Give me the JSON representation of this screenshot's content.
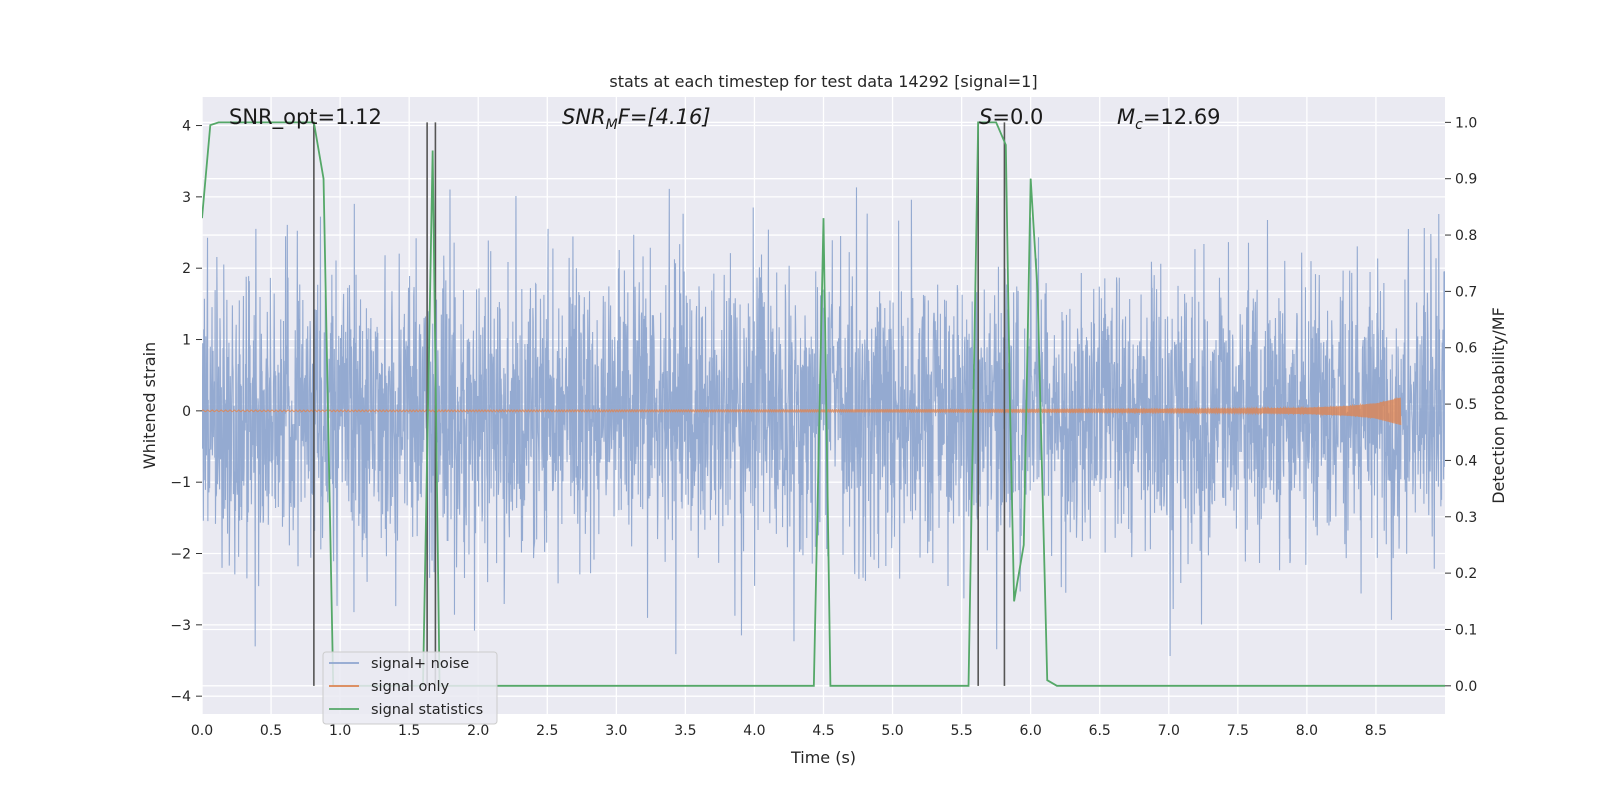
{
  "chart_data": {
    "type": "line",
    "title": "stats at each timestep for test data 14292 [signal=1]",
    "xlabel": "Time (s)",
    "ylabel": "Whitened strain",
    "ylabel_right": "Detection probability/MF",
    "xlim": [
      0.0,
      9.0
    ],
    "ylim": [
      -4.25,
      4.4
    ],
    "ylim_right": [
      -0.05,
      1.045
    ],
    "x_ticks": [
      0.0,
      0.5,
      1.0,
      1.5,
      2.0,
      2.5,
      3.0,
      3.5,
      4.0,
      4.5,
      5.0,
      5.5,
      6.0,
      6.5,
      7.0,
      7.5,
      8.0,
      8.5
    ],
    "x_tick_labels": [
      "0.0",
      "0.5",
      "1.0",
      "1.5",
      "2.0",
      "2.5",
      "3.0",
      "3.5",
      "4.0",
      "4.5",
      "5.0",
      "5.5",
      "6.0",
      "6.5",
      "7.0",
      "7.5",
      "8.0",
      "8.5"
    ],
    "y_ticks": [
      -4,
      -3,
      -2,
      -1,
      0,
      1,
      2,
      3,
      4
    ],
    "y_tick_labels": [
      "−4",
      "−3",
      "−2",
      "−1",
      "0",
      "1",
      "2",
      "3",
      "4"
    ],
    "y_right_ticks": [
      0.0,
      0.1,
      0.2,
      0.3,
      0.4,
      0.5,
      0.6,
      0.7,
      0.8,
      0.9,
      1.0
    ],
    "y_right_tick_labels": [
      "0.0",
      "0.1",
      "0.2",
      "0.3",
      "0.4",
      "0.5",
      "0.6",
      "0.7",
      "0.8",
      "0.9",
      "1.0"
    ],
    "grid": true,
    "legend_position": "lower-left",
    "annotations": {
      "snr_opt": "SNR_opt=1.12",
      "snr_mf_var": "SNR",
      "snr_mf_sub": "M",
      "snr_mf_rest": "F=[4.16]",
      "s_var": "S",
      "s_rest": "=0.0",
      "mc_var": "M",
      "mc_sub": "c",
      "mc_rest": "=12.69"
    },
    "series": [
      {
        "name": "signal+ noise",
        "color": "#8fa6cf",
        "axis": "left",
        "x_range": [
          0.0,
          9.0
        ],
        "amplitude_sigma": 1.0,
        "peak_range": [
          -3.7,
          4.0
        ]
      },
      {
        "name": "signal only",
        "color": "#dd8452",
        "axis": "left",
        "x": [
          0.0,
          2.0,
          4.0,
          6.0,
          7.0,
          7.5,
          8.0,
          8.3,
          8.5,
          8.6,
          8.68
        ],
        "envelope": [
          0.01,
          0.012,
          0.015,
          0.02,
          0.025,
          0.03,
          0.045,
          0.07,
          0.11,
          0.16,
          0.2
        ]
      },
      {
        "name": "signal statistics",
        "color": "#55a868",
        "axis": "right",
        "x": [
          0.0,
          0.06,
          0.12,
          0.2,
          0.8,
          0.81,
          0.88,
          0.95,
          1.0,
          1.6,
          1.67,
          1.72,
          1.78,
          4.43,
          4.5,
          4.55,
          4.62,
          5.55,
          5.62,
          5.68,
          5.75,
          5.82,
          5.85,
          5.88,
          5.95,
          6.0,
          6.05,
          6.12,
          6.19,
          9.0
        ],
        "y": [
          0.83,
          0.995,
          1.0,
          1.0,
          1.0,
          1.0,
          0.9,
          0.0,
          0.0,
          0.0,
          0.95,
          0.0,
          0.0,
          0.0,
          0.83,
          0.0,
          0.0,
          0.0,
          1.0,
          1.0,
          1.0,
          0.96,
          0.5,
          0.15,
          0.25,
          0.9,
          0.7,
          0.01,
          0.0,
          0.0
        ]
      }
    ],
    "vertical_markers": [
      {
        "x": 0.81,
        "color": "#555555"
      },
      {
        "x": 1.63,
        "color": "#555555"
      },
      {
        "x": 1.69,
        "color": "#555555"
      },
      {
        "x": 5.62,
        "color": "#555555"
      },
      {
        "x": 5.81,
        "color": "#555555"
      }
    ]
  }
}
